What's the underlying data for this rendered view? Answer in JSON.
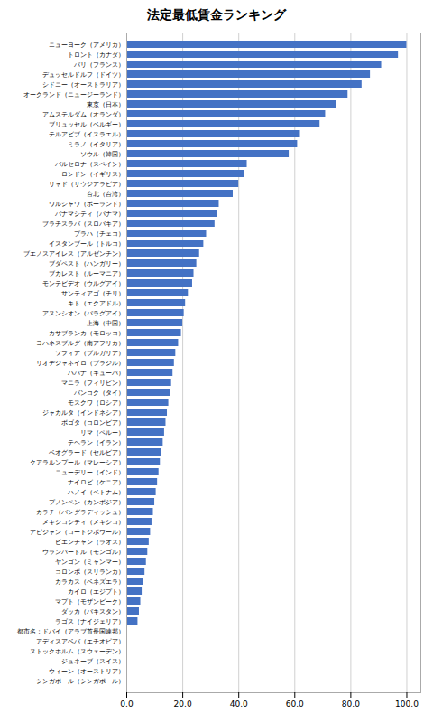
{
  "chart_data": {
    "type": "bar",
    "orientation": "horizontal",
    "title": "法定最低賃金ランキング",
    "categories": [
      "ニューヨーク（アメリカ）",
      "トロント（カナダ）",
      "パリ（フランス）",
      "デュッセルドルフ（ドイツ）",
      "シドニー（オーストラリア）",
      "オークランド（ニュージーランド）",
      "東京（日本）",
      "アムステルダム（オランダ）",
      "ブリュッセル（ベルギー）",
      "テルアビブ（イスラエル）",
      "ミラノ（イタリア）",
      "ソウル（韓国）",
      "バルセロナ（スペイン）",
      "ロンドン（イギリス）",
      "リャド（サウジアラビア）",
      "台北（台湾）",
      "ワルシャワ（ポーランド）",
      "パナマシティ（パナマ）",
      "ブラチスラバ（スロバキア）",
      "プラハ（チェコ）",
      "イスタンブール（トルコ）",
      "ブエノスアイレス（アルゼンチン）",
      "ブダペスト（ハンガリー）",
      "ブカレスト（ルーマニア）",
      "モンテビデオ（ウルグアイ）",
      "サンティアゴ（チリ）",
      "キト（エクアドル）",
      "アスンシオン（パラグアイ）",
      "上海（中国）",
      "カサブランカ（モロッコ）",
      "ヨハネスブルグ（南アフリカ）",
      "ソフィア（ブルガリア）",
      "リオデジャネイロ（ブラジル）",
      "ハバナ（キューバ）",
      "マニラ（フィリピン）",
      "バンコク（タイ）",
      "モスクワ（ロシア）",
      "ジャカルタ（インドネシア）",
      "ボゴタ（コロンビア）",
      "リマ（ペルー）",
      "テヘラン（イラン）",
      "ベオグラード（セルビア）",
      "クアラルンプール（マレーシア）",
      "ニューデリー（インド）",
      "ナイロビ（ケニア）",
      "ハノイ（ベトナム）",
      "プノンペン（カンボジア）",
      "カラチ（バングラディッシュ）",
      "メキシコシティ（メキシコ）",
      "アビジャン（コートジボワール）",
      "ビエンチャン（ラオス）",
      "ウランバートル（モンゴル）",
      "ヤンゴン（ミャンマー）",
      "コロンボ（スリランカ）",
      "カラカス（ベネズエラ）",
      "カイロ（エジプト）",
      "マプト（モザンビーク）",
      "ダッカ（パキスタン）",
      "ラゴス（ナイジェリア）",
      "都市名：ドバイ（アラブ首長国連邦）",
      "アディスアベバ（エチオピア）",
      "ストックホルム（スウェーデン）",
      "ジュネーブ（スイス）",
      "ウィーン（オーストリア）",
      "シンガポール（シンガポール）"
    ],
    "values": [
      100.0,
      97.0,
      91.0,
      87.0,
      84.0,
      79.0,
      75.0,
      71.0,
      69.0,
      62.0,
      61.0,
      58.0,
      43.0,
      42.0,
      40.0,
      38.0,
      33.0,
      32.5,
      31.5,
      28.5,
      27.5,
      26.0,
      25.0,
      24.0,
      23.5,
      22.0,
      21.0,
      20.5,
      20.0,
      19.5,
      18.5,
      17.5,
      17.0,
      16.5,
      16.0,
      15.5,
      15.0,
      14.5,
      14.0,
      13.5,
      13.0,
      12.5,
      12.0,
      11.5,
      11.0,
      10.5,
      10.0,
      9.5,
      9.0,
      8.5,
      8.0,
      7.5,
      7.0,
      6.5,
      6.0,
      5.5,
      5.0,
      4.5,
      4.0,
      0.0,
      0.0,
      0.0,
      0.0,
      0.0,
      0.0
    ],
    "color": "#4472C4",
    "xlim": [
      0,
      105
    ],
    "xticks": [
      {
        "value": 0,
        "label": "0.0"
      },
      {
        "value": 20,
        "label": "20.0"
      },
      {
        "value": 40,
        "label": "40.0"
      },
      {
        "value": 60,
        "label": "60.0"
      },
      {
        "value": 80,
        "label": "80.0"
      },
      {
        "value": 100,
        "label": "100.0"
      }
    ],
    "grid": true
  }
}
